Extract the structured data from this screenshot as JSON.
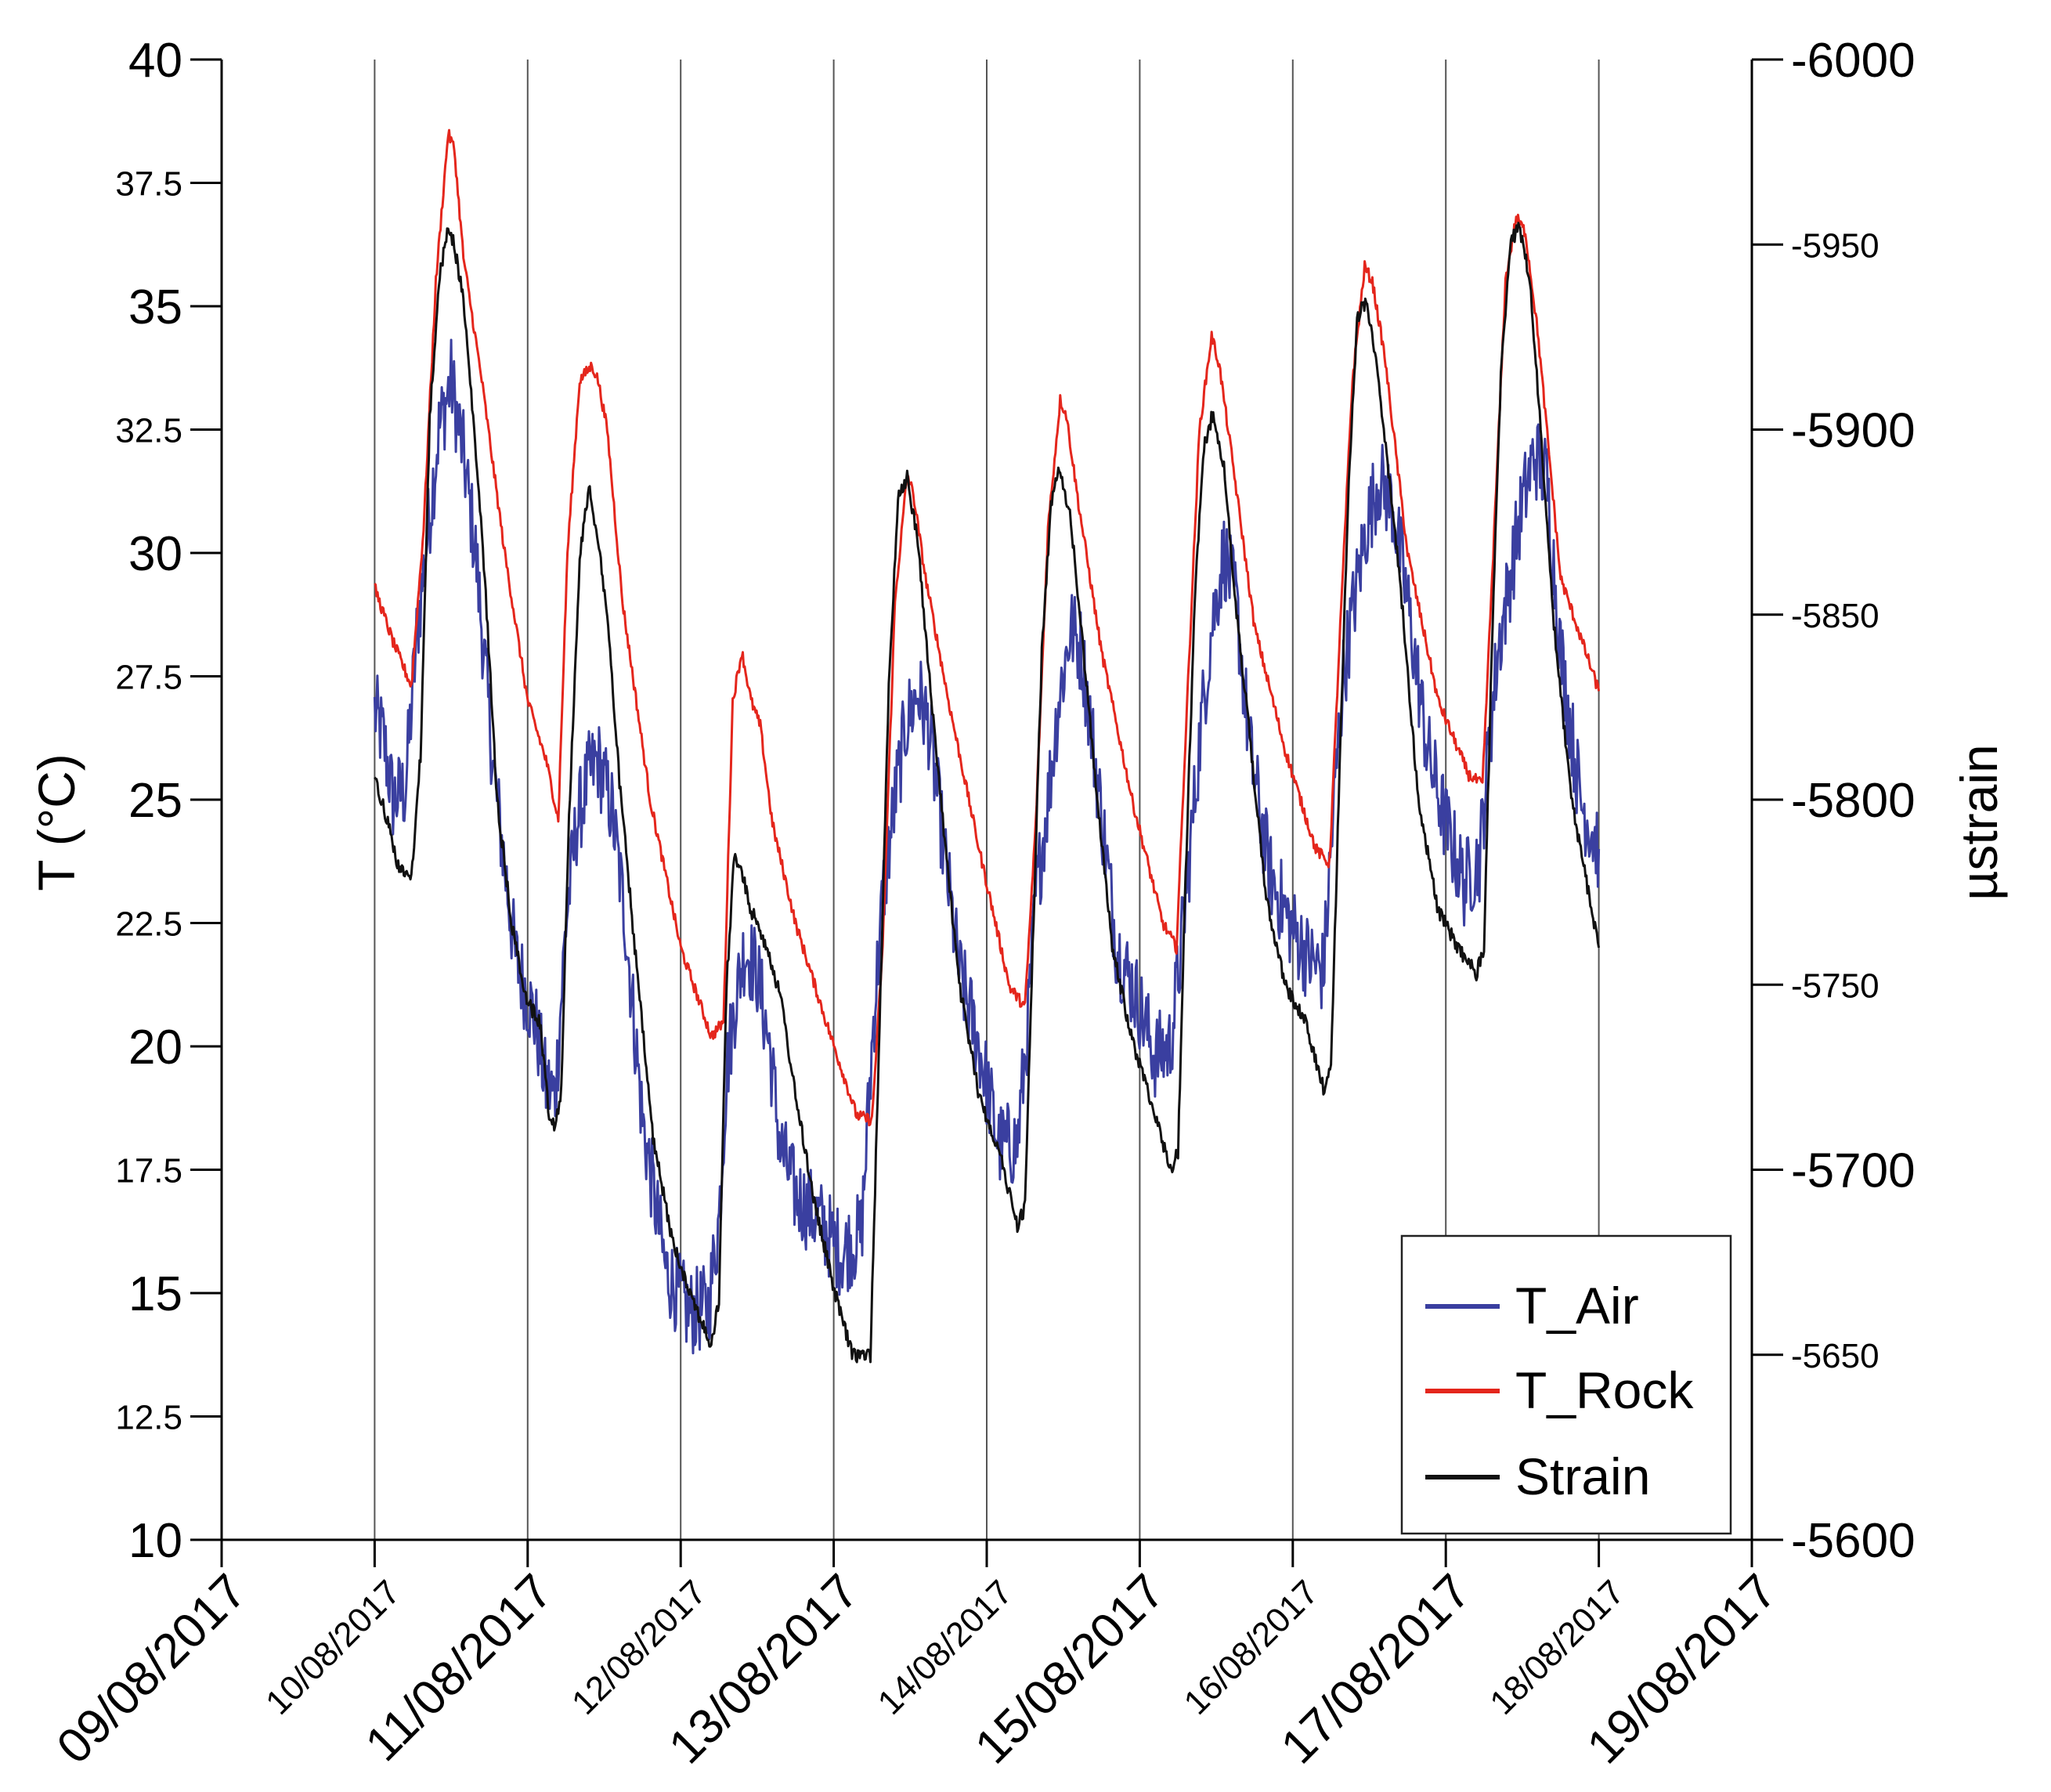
{
  "chart_data": {
    "type": "line",
    "title": "",
    "ylabel": "T (°C)",
    "y2label": "µstrain",
    "ylim": [
      10,
      40
    ],
    "y2lim": [
      -5600,
      -6000
    ],
    "xlim": [
      0,
      10
    ],
    "y_ticks": [
      "10",
      "12.5",
      "15",
      "17.5",
      "20",
      "22.5",
      "25",
      "27.5",
      "30",
      "32.5",
      "35",
      "37.5",
      "40"
    ],
    "y2_ticks": [
      "-5600",
      "-5650",
      "-5700",
      "-5750",
      "-5800",
      "-5850",
      "-5900",
      "-5950",
      "-6000"
    ],
    "x_tick_labels": [
      "09/08/2017",
      "10/08/2017",
      "11/08/2017",
      "12/08/2017",
      "13/08/2017",
      "14/08/2017",
      "15/08/2017",
      "16/08/2017",
      "17/08/2017",
      "18/08/2017",
      "19/08/2017"
    ],
    "x_unit": "days since 09/08/2017",
    "vertical_gridlines_at": [
      1,
      2,
      3,
      4,
      5,
      6,
      7,
      8,
      9
    ],
    "legend": {
      "position": "bottom-right",
      "entries": [
        "T_Air",
        "T_Rock",
        "Strain"
      ]
    },
    "series": [
      {
        "name": "T_Air",
        "axis": "left",
        "color": "#3a3fa0",
        "noise": 0.9,
        "x": [
          1.0,
          1.06,
          1.12,
          1.2,
          1.28,
          1.35,
          1.42,
          1.5,
          1.58,
          1.66,
          1.78,
          1.92,
          2.05,
          2.12,
          2.18,
          2.25,
          2.32,
          2.4,
          2.46,
          2.55,
          2.64,
          2.75,
          2.9,
          3.05,
          3.18,
          3.25,
          3.3,
          3.36,
          3.42,
          3.5,
          3.58,
          3.65,
          3.75,
          3.9,
          4.05,
          4.18,
          4.26,
          4.32,
          4.4,
          4.47,
          4.55,
          4.62,
          4.7,
          4.82,
          4.95,
          5.08,
          5.2,
          5.27,
          5.32,
          5.4,
          5.47,
          5.55,
          5.62,
          5.72,
          5.85,
          5.98,
          6.1,
          6.2,
          6.27,
          6.33,
          6.4,
          6.47,
          6.55,
          6.63,
          6.72,
          6.85,
          6.98,
          7.1,
          7.2,
          7.27,
          7.33,
          7.4,
          7.48,
          7.56,
          7.65,
          7.75,
          7.88,
          8.0,
          8.12,
          8.22,
          8.28,
          8.34,
          8.42,
          8.5,
          8.58,
          8.66,
          8.75,
          8.88,
          9.0
        ],
        "y": [
          26.8,
          26.2,
          25.0,
          25.2,
          28.5,
          30.5,
          32.5,
          33.5,
          32.0,
          30.0,
          25.5,
          21.8,
          20.5,
          19.2,
          19.0,
          22.5,
          24.5,
          25.5,
          25.8,
          24.8,
          22.5,
          18.5,
          15.5,
          14.6,
          14.7,
          16.5,
          19.5,
          21.0,
          22.0,
          21.5,
          20.0,
          18.0,
          17.0,
          16.5,
          15.8,
          16.2,
          20.5,
          23.0,
          25.0,
          26.5,
          27.2,
          26.5,
          24.5,
          21.5,
          20.0,
          18.0,
          18.0,
          20.5,
          23.0,
          25.0,
          27.0,
          28.5,
          28.0,
          25.5,
          22.0,
          21.0,
          19.8,
          20.0,
          22.0,
          24.0,
          26.5,
          28.5,
          30.0,
          29.0,
          26.0,
          23.5,
          22.5,
          21.8,
          21.5,
          25.0,
          27.5,
          29.0,
          30.5,
          31.5,
          31.0,
          29.0,
          26.0,
          24.5,
          23.3,
          23.8,
          26.0,
          28.0,
          29.5,
          31.0,
          32.0,
          31.5,
          28.0,
          25.0,
          24.0
        ]
      },
      {
        "name": "T_Rock",
        "axis": "left",
        "color": "#e4261c",
        "noise": 0.12,
        "x": [
          1.0,
          1.12,
          1.24,
          1.32,
          1.4,
          1.48,
          1.52,
          1.58,
          1.7,
          1.85,
          2.0,
          2.12,
          2.2,
          2.26,
          2.34,
          2.42,
          2.46,
          2.52,
          2.62,
          2.8,
          3.0,
          3.2,
          3.28,
          3.34,
          3.4,
          3.46,
          3.52,
          3.6,
          3.75,
          3.95,
          4.15,
          4.25,
          4.32,
          4.4,
          4.48,
          4.52,
          4.6,
          4.75,
          4.95,
          5.15,
          5.25,
          5.32,
          5.4,
          5.48,
          5.52,
          5.6,
          5.75,
          5.95,
          6.15,
          6.24,
          6.31,
          6.39,
          6.47,
          6.52,
          6.6,
          6.75,
          6.95,
          7.15,
          7.24,
          7.31,
          7.39,
          7.47,
          7.52,
          7.6,
          7.75,
          7.95,
          8.15,
          8.24,
          8.31,
          8.39,
          8.46,
          8.52,
          8.6,
          8.75,
          9.0
        ],
        "y": [
          29.3,
          28.2,
          27.3,
          30.5,
          35.5,
          38.5,
          38.2,
          36.0,
          33.5,
          30.0,
          27.0,
          25.8,
          24.6,
          30.0,
          33.5,
          33.8,
          33.5,
          32.5,
          29.0,
          25.0,
          22.0,
          20.2,
          20.5,
          27.0,
          28.0,
          27.0,
          26.5,
          24.5,
          22.5,
          20.5,
          18.6,
          18.5,
          22.0,
          29.0,
          31.6,
          31.2,
          29.5,
          27.0,
          24.0,
          21.2,
          20.8,
          24.5,
          30.5,
          33.1,
          32.8,
          31.0,
          28.0,
          25.0,
          22.5,
          22.0,
          27.0,
          32.5,
          34.4,
          33.8,
          32.0,
          28.5,
          26.0,
          24.0,
          23.7,
          28.5,
          33.5,
          35.8,
          35.5,
          34.0,
          30.0,
          27.0,
          25.5,
          25.3,
          30.0,
          35.5,
          36.8,
          36.5,
          34.5,
          29.5,
          27.2
        ]
      },
      {
        "name": "Strain",
        "axis": "right",
        "color": "#111111",
        "noise": 2.0,
        "x": [
          1.0,
          1.08,
          1.16,
          1.24,
          1.3,
          1.36,
          1.42,
          1.48,
          1.52,
          1.58,
          1.65,
          1.72,
          1.8,
          1.9,
          2.0,
          2.08,
          2.14,
          2.18,
          2.22,
          2.27,
          2.34,
          2.4,
          2.46,
          2.52,
          2.6,
          2.7,
          2.82,
          2.95,
          3.08,
          3.2,
          3.25,
          3.3,
          3.35,
          3.4,
          3.46,
          3.52,
          3.58,
          3.66,
          3.75,
          3.88,
          4.0,
          4.12,
          4.24,
          4.3,
          4.36,
          4.42,
          4.48,
          4.55,
          4.62,
          4.7,
          4.82,
          4.95,
          5.08,
          5.2,
          5.25,
          5.3,
          5.36,
          5.42,
          5.48,
          5.55,
          5.62,
          5.7,
          5.82,
          5.95,
          6.08,
          6.2,
          6.25,
          6.3,
          6.36,
          6.42,
          6.48,
          6.55,
          6.62,
          6.7,
          6.82,
          6.95,
          7.08,
          7.2,
          7.25,
          7.3,
          7.36,
          7.42,
          7.48,
          7.55,
          7.62,
          7.7,
          7.82,
          7.95,
          8.08,
          8.2,
          8.25,
          8.3,
          8.36,
          8.42,
          8.48,
          8.55,
          8.62,
          8.7,
          8.82,
          9.0
        ],
        "y": [
          -5806,
          -5795,
          -5781,
          -5779,
          -5812,
          -5903,
          -5940,
          -5955,
          -5950,
          -5935,
          -5900,
          -5860,
          -5800,
          -5765,
          -5745,
          -5740,
          -5715,
          -5712,
          -5722,
          -5795,
          -5865,
          -5885,
          -5870,
          -5850,
          -5805,
          -5760,
          -5708,
          -5680,
          -5665,
          -5652,
          -5665,
          -5750,
          -5785,
          -5780,
          -5770,
          -5765,
          -5758,
          -5745,
          -5720,
          -5690,
          -5668,
          -5650,
          -5650,
          -5740,
          -5830,
          -5882,
          -5887,
          -5870,
          -5835,
          -5800,
          -5750,
          -5720,
          -5705,
          -5685,
          -5690,
          -5760,
          -5840,
          -5880,
          -5890,
          -5875,
          -5845,
          -5810,
          -5760,
          -5735,
          -5718,
          -5700,
          -5705,
          -5780,
          -5855,
          -5895,
          -5905,
          -5890,
          -5855,
          -5825,
          -5775,
          -5750,
          -5740,
          -5722,
          -5728,
          -5800,
          -5880,
          -5930,
          -5935,
          -5918,
          -5890,
          -5860,
          -5800,
          -5770,
          -5760,
          -5753,
          -5760,
          -5840,
          -5915,
          -5950,
          -5955,
          -5940,
          -5900,
          -5850,
          -5800,
          -5760
        ]
      }
    ]
  }
}
